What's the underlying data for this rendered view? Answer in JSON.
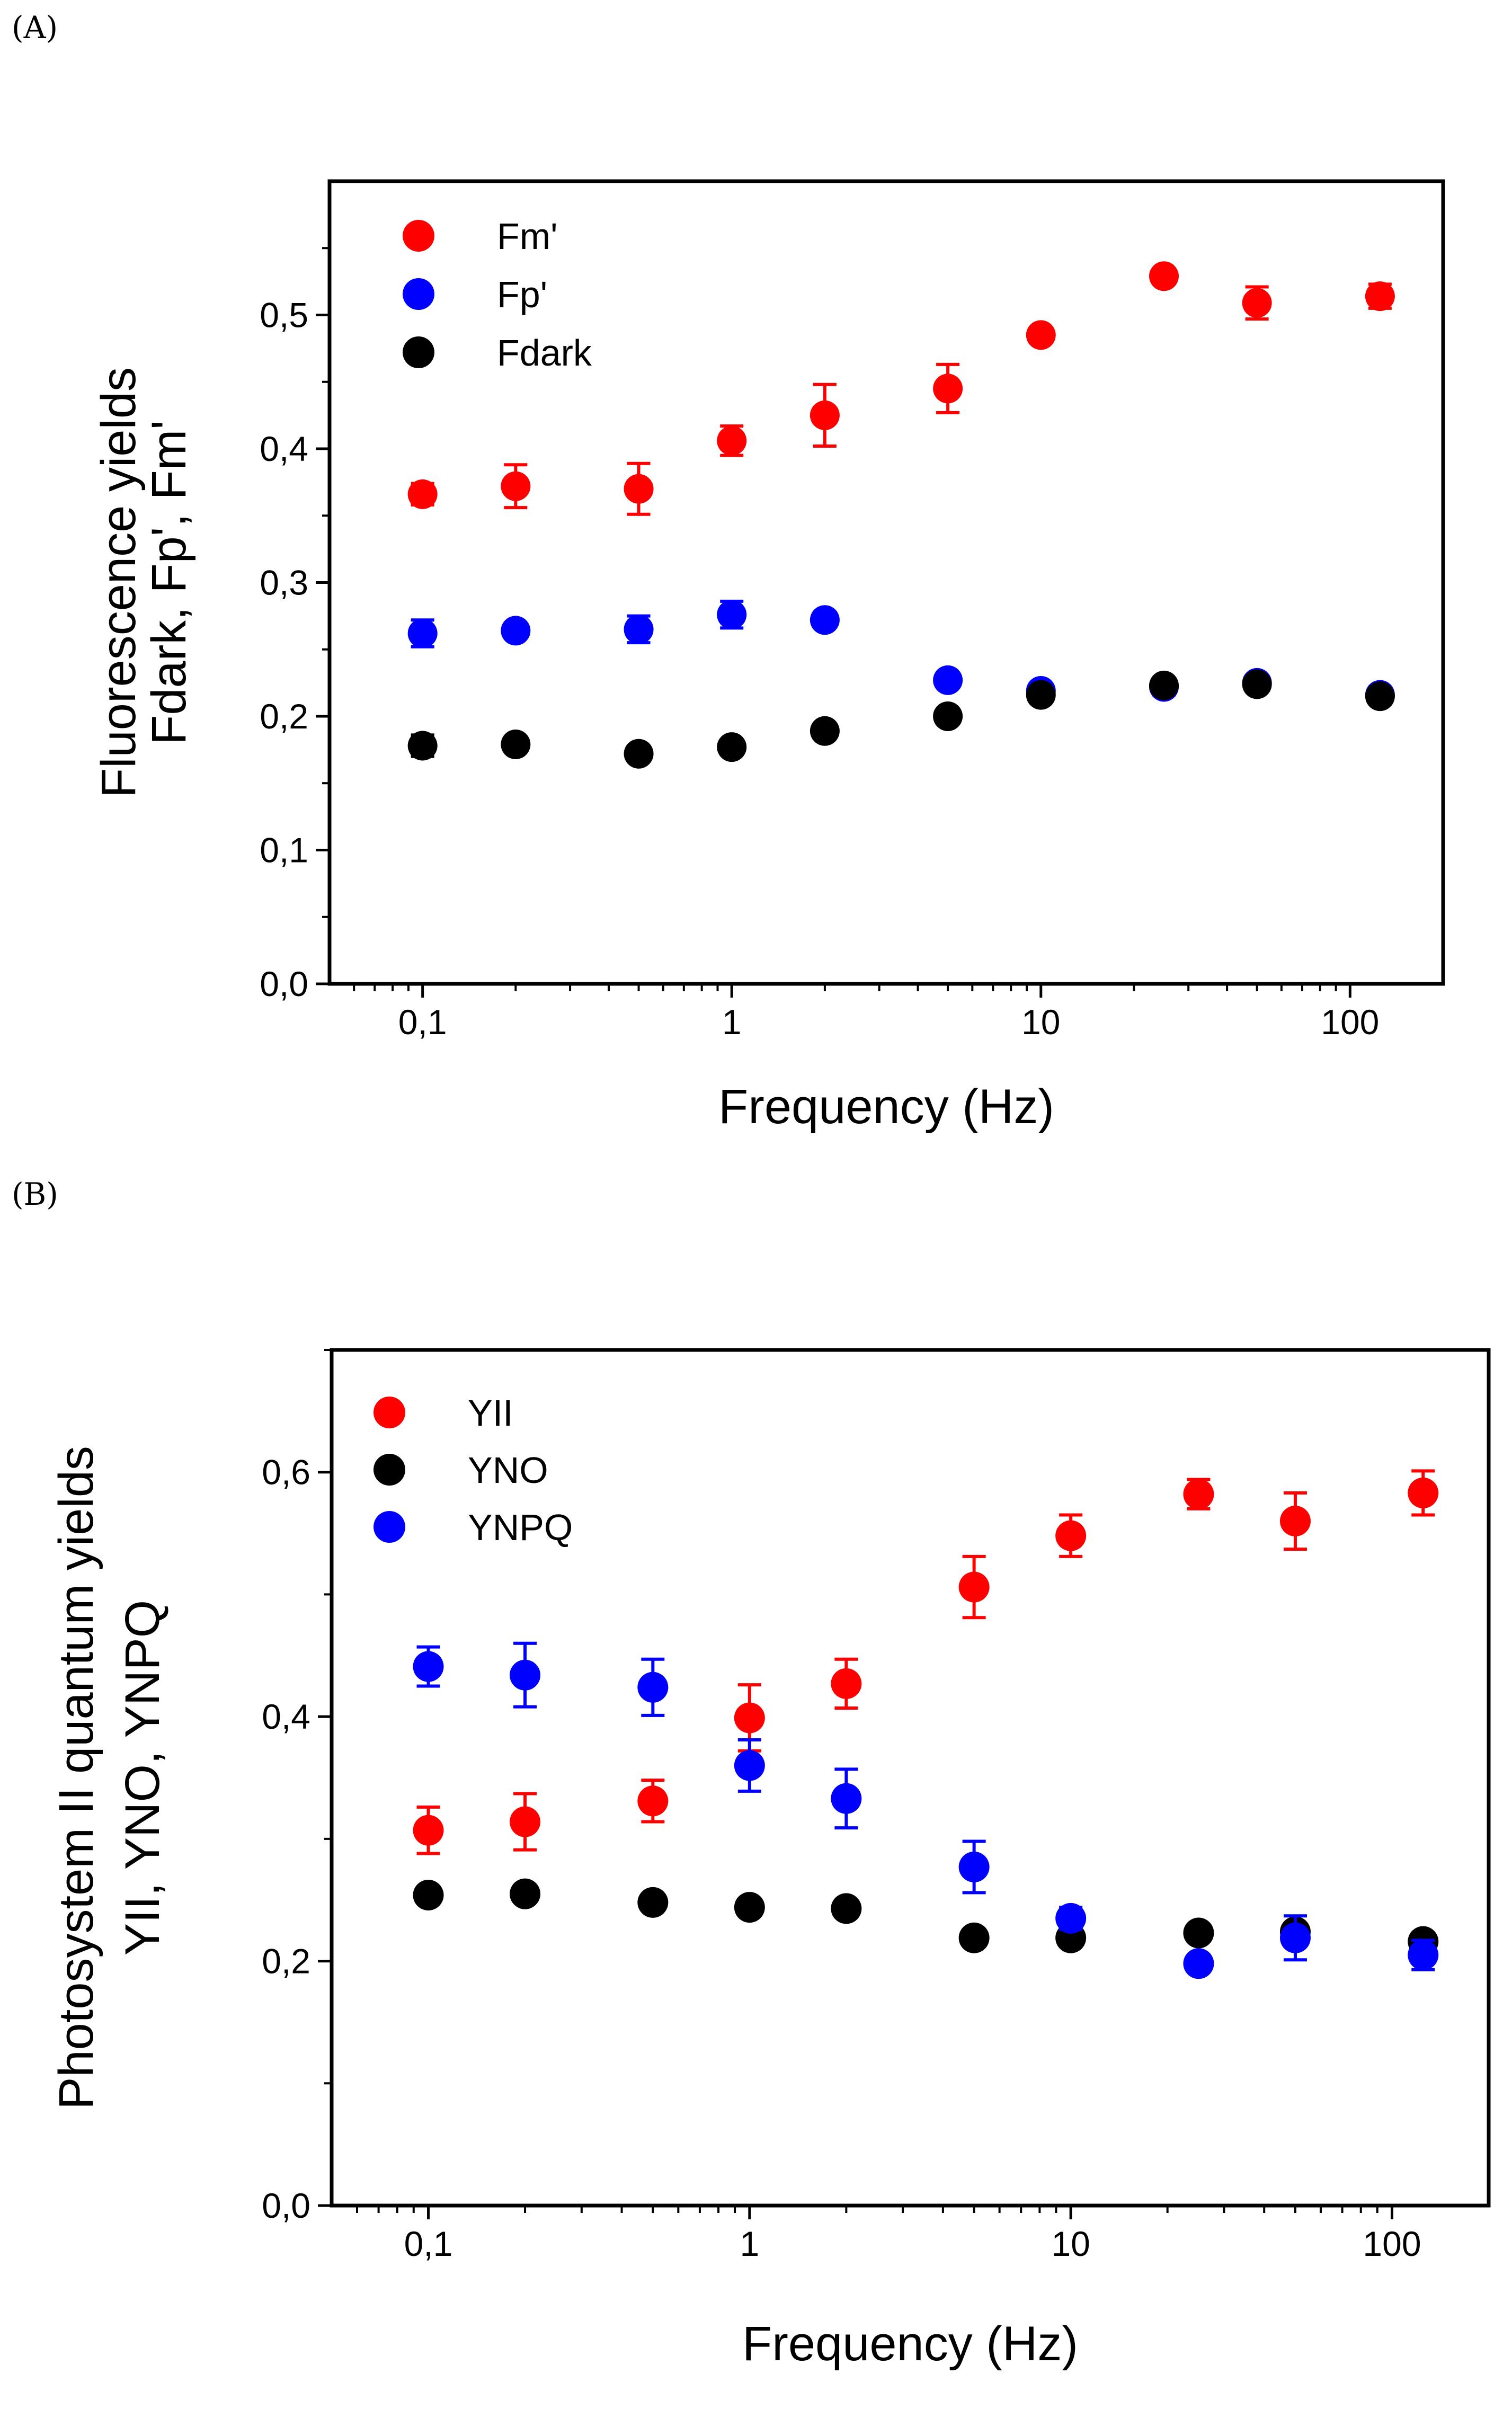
{
  "figure": {
    "panel_a_label": "(A)",
    "panel_b_label": "(B)"
  },
  "chart_data": [
    {
      "type": "scatter",
      "panel": "A",
      "title": "",
      "xlabel": "Frequency (Hz)",
      "ylabel_line1": "Fluorescence yields",
      "ylabel_line2": "Fdark, Fp', Fm'",
      "xscale": "log",
      "xlim": [
        0.05,
        200
      ],
      "ylim": [
        0,
        0.6
      ],
      "xticks": [
        0.1,
        1,
        10,
        100
      ],
      "xtick_labels": [
        "0,1",
        "1",
        "10",
        "100"
      ],
      "yticks": [
        0,
        0.1,
        0.2,
        0.3,
        0.4,
        0.5
      ],
      "ytick_labels": [
        "0,0",
        "0,1",
        "0,2",
        "0,3",
        "0,4",
        "0,5"
      ],
      "legend_position": "top-left",
      "series": [
        {
          "name": "Fm'",
          "color": "#ff0000",
          "x": [
            0.1,
            0.2,
            0.5,
            1,
            2,
            5,
            10,
            25,
            50,
            125
          ],
          "y": [
            0.366,
            0.372,
            0.37,
            0.406,
            0.425,
            0.445,
            0.485,
            0.529,
            0.509,
            0.514
          ],
          "err": [
            0.008,
            0.016,
            0.019,
            0.011,
            0.023,
            0.018,
            0.005,
            0.004,
            0.012,
            0.009
          ]
        },
        {
          "name": "Fp'",
          "color": "#0000ff",
          "x": [
            0.1,
            0.2,
            0.5,
            1,
            2,
            5,
            10,
            25,
            50,
            125
          ],
          "y": [
            0.262,
            0.264,
            0.265,
            0.276,
            0.272,
            0.227,
            0.219,
            0.222,
            0.225,
            0.216
          ],
          "err": [
            0.01,
            0.004,
            0.01,
            0.01,
            0.004,
            0.003,
            0.003,
            0.006,
            0.004,
            0.004
          ]
        },
        {
          "name": "Fdark",
          "color": "#000000",
          "x": [
            0.1,
            0.2,
            0.5,
            1,
            2,
            5,
            10,
            25,
            50,
            125
          ],
          "y": [
            0.178,
            0.179,
            0.172,
            0.177,
            0.189,
            0.2,
            0.216,
            0.223,
            0.224,
            0.215
          ],
          "err": [
            0.008,
            0.004,
            0.003,
            0.005,
            0.003,
            0.003,
            0.004,
            0.004,
            0.004,
            0.004
          ]
        }
      ]
    },
    {
      "type": "scatter",
      "panel": "B",
      "title": "",
      "xlabel": "Frequency (Hz)",
      "ylabel_line1": "Photosystem II quantum yields",
      "ylabel_line2": "YII, YNO, YNPQ",
      "xscale": "log",
      "xlim": [
        0.05,
        200
      ],
      "ylim": [
        0,
        0.7
      ],
      "xticks": [
        0.1,
        1,
        10,
        100
      ],
      "xtick_labels": [
        "0,1",
        "1",
        "10",
        "100"
      ],
      "yticks": [
        0,
        0.2,
        0.4,
        0.6
      ],
      "ytick_labels": [
        "0,0",
        "0,2",
        "0,4",
        "0,6"
      ],
      "legend_position": "top-left",
      "series": [
        {
          "name": "YII",
          "color": "#ff0000",
          "x": [
            0.1,
            0.2,
            0.5,
            1,
            2,
            5,
            10,
            25,
            50,
            125
          ],
          "y": [
            0.307,
            0.314,
            0.331,
            0.399,
            0.427,
            0.506,
            0.548,
            0.582,
            0.56,
            0.583
          ],
          "err": [
            0.019,
            0.023,
            0.017,
            0.027,
            0.02,
            0.025,
            0.017,
            0.012,
            0.023,
            0.018
          ]
        },
        {
          "name": "YNO",
          "color": "#000000",
          "x": [
            0.1,
            0.2,
            0.5,
            1,
            2,
            5,
            10,
            25,
            50,
            125
          ],
          "y": [
            0.254,
            0.255,
            0.248,
            0.244,
            0.243,
            0.219,
            0.219,
            0.223,
            0.224,
            0.216
          ],
          "err": [
            0.005,
            0.004,
            0.004,
            0.006,
            0.004,
            0.004,
            0.004,
            0.004,
            0.005,
            0.004
          ]
        },
        {
          "name": "YNPQ",
          "color": "#0000ff",
          "x": [
            0.1,
            0.2,
            0.5,
            1,
            2,
            5,
            10,
            25,
            50,
            125
          ],
          "y": [
            0.441,
            0.434,
            0.424,
            0.36,
            0.333,
            0.277,
            0.235,
            0.198,
            0.219,
            0.205
          ],
          "err": [
            0.016,
            0.026,
            0.023,
            0.021,
            0.024,
            0.021,
            0.009,
            0.004,
            0.018,
            0.012
          ]
        }
      ]
    }
  ]
}
